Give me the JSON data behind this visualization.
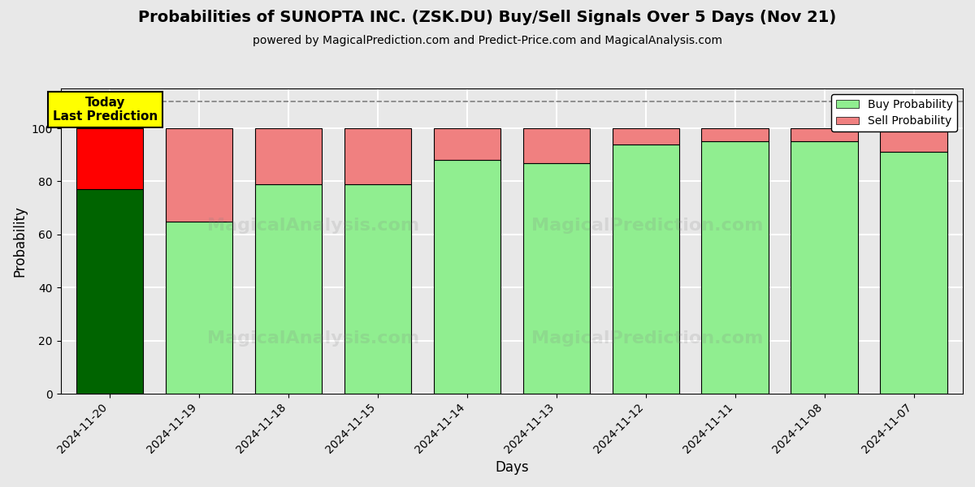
{
  "title": "Probabilities of SUNOPTA INC. (ZSK.DU) Buy/Sell Signals Over 5 Days (Nov 21)",
  "subtitle": "powered by MagicalPrediction.com and Predict-Price.com and MagicalAnalysis.com",
  "xlabel": "Days",
  "ylabel": "Probability",
  "dates": [
    "2024-11-20",
    "2024-11-19",
    "2024-11-18",
    "2024-11-15",
    "2024-11-14",
    "2024-11-13",
    "2024-11-12",
    "2024-11-11",
    "2024-11-08",
    "2024-11-07"
  ],
  "buy_values": [
    77,
    65,
    79,
    79,
    88,
    87,
    94,
    95,
    95,
    91
  ],
  "sell_values": [
    23,
    35,
    21,
    21,
    12,
    13,
    6,
    5,
    5,
    9
  ],
  "today_buy_color": "#006400",
  "today_sell_color": "#FF0000",
  "buy_color_other": "#90EE90",
  "sell_color_other": "#F08080",
  "annotation_text": "Today\nLast Prediction",
  "annotation_bg": "#FFFF00",
  "ylim": [
    0,
    115
  ],
  "dashed_line_y": 110,
  "legend_buy_color": "#90EE90",
  "legend_sell_color": "#F08080",
  "figsize": [
    12,
    6
  ],
  "dpi": 100,
  "bar_width": 0.75,
  "grid_color": "#ffffff",
  "bg_color": "#e8e8e8",
  "plot_bg_color": "#e8e8e8"
}
